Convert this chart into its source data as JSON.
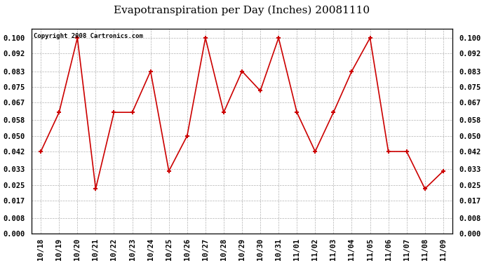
{
  "title": "Evapotranspiration per Day (Inches) 20081110",
  "copyright": "Copyright 2008 Cartronics.com",
  "x_labels": [
    "10/18",
    "10/19",
    "10/20",
    "10/21",
    "10/22",
    "10/23",
    "10/24",
    "10/25",
    "10/26",
    "10/27",
    "10/28",
    "10/29",
    "10/30",
    "10/31",
    "11/01",
    "11/02",
    "11/03",
    "11/04",
    "11/05",
    "11/06",
    "11/07",
    "11/08",
    "11/09"
  ],
  "y_values": [
    0.042,
    0.062,
    0.1,
    0.023,
    0.062,
    0.062,
    0.083,
    0.032,
    0.05,
    0.1,
    0.062,
    0.083,
    0.073,
    0.1,
    0.062,
    0.042,
    0.062,
    0.083,
    0.1,
    0.042,
    0.042,
    0.023,
    0.032
  ],
  "y_ticks": [
    0.0,
    0.008,
    0.017,
    0.025,
    0.033,
    0.042,
    0.05,
    0.058,
    0.067,
    0.075,
    0.083,
    0.092,
    0.1
  ],
  "line_color": "#cc0000",
  "marker_color": "#cc0000",
  "bg_color": "#ffffff",
  "plot_bg_color": "#ffffff",
  "grid_color": "#aaaaaa",
  "title_fontsize": 11,
  "copyright_fontsize": 6.5,
  "tick_fontsize": 7.5,
  "ylim": [
    0.0,
    0.1045
  ]
}
